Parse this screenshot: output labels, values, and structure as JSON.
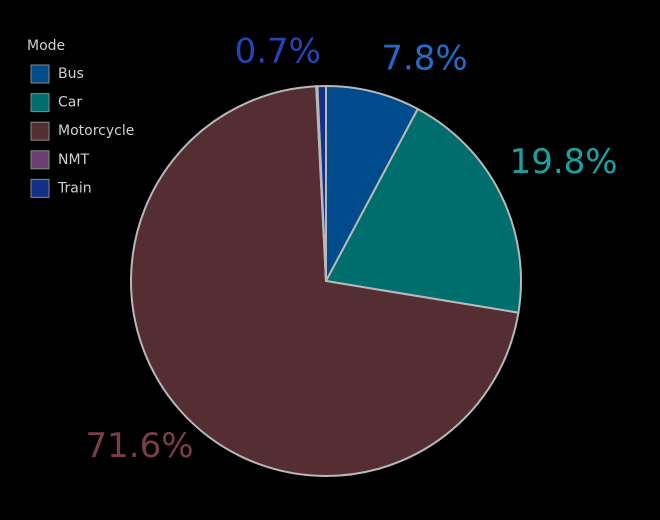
{
  "chart_data": {
    "type": "pie",
    "legend_title": "Mode",
    "legend_position": "upper left",
    "categories": [
      "Bus",
      "Car",
      "Motorcycle",
      "NMT",
      "Train"
    ],
    "values": [
      7.8,
      19.8,
      71.6,
      0.1,
      0.7
    ],
    "value_labels": [
      "7.8%",
      "19.8%",
      "71.6%",
      null,
      "0.7%"
    ],
    "colors": [
      "#004b8c",
      "#006e6c",
      "#552e33",
      "#6b3f72",
      "#142f86"
    ],
    "label_colors": [
      "#1f6dc9",
      "#17a3a6",
      "#7b3e45",
      null,
      "#2345b8"
    ]
  }
}
